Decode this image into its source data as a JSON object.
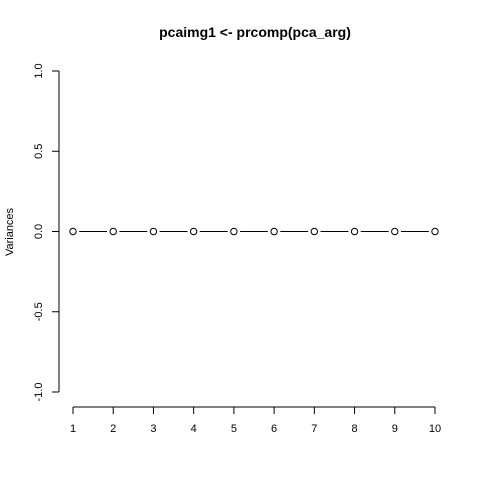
{
  "chart_data": {
    "type": "line",
    "title": "pcaimg1 <- prcomp(pca_arg)",
    "xlabel": "",
    "ylabel": "Variances",
    "x": [
      1,
      2,
      3,
      4,
      5,
      6,
      7,
      8,
      9,
      10
    ],
    "values": [
      0,
      0,
      0,
      0,
      0,
      0,
      0,
      0,
      0,
      0
    ],
    "xlim": [
      1,
      10
    ],
    "ylim": [
      -1,
      1
    ],
    "x_ticks": [
      "1",
      "2",
      "3",
      "4",
      "5",
      "6",
      "7",
      "8",
      "9",
      "10"
    ],
    "y_ticks": [
      "-1.0",
      "-0.5",
      "0.0",
      "0.5",
      "1.0"
    ],
    "grid": false,
    "marker": "open-circle"
  }
}
